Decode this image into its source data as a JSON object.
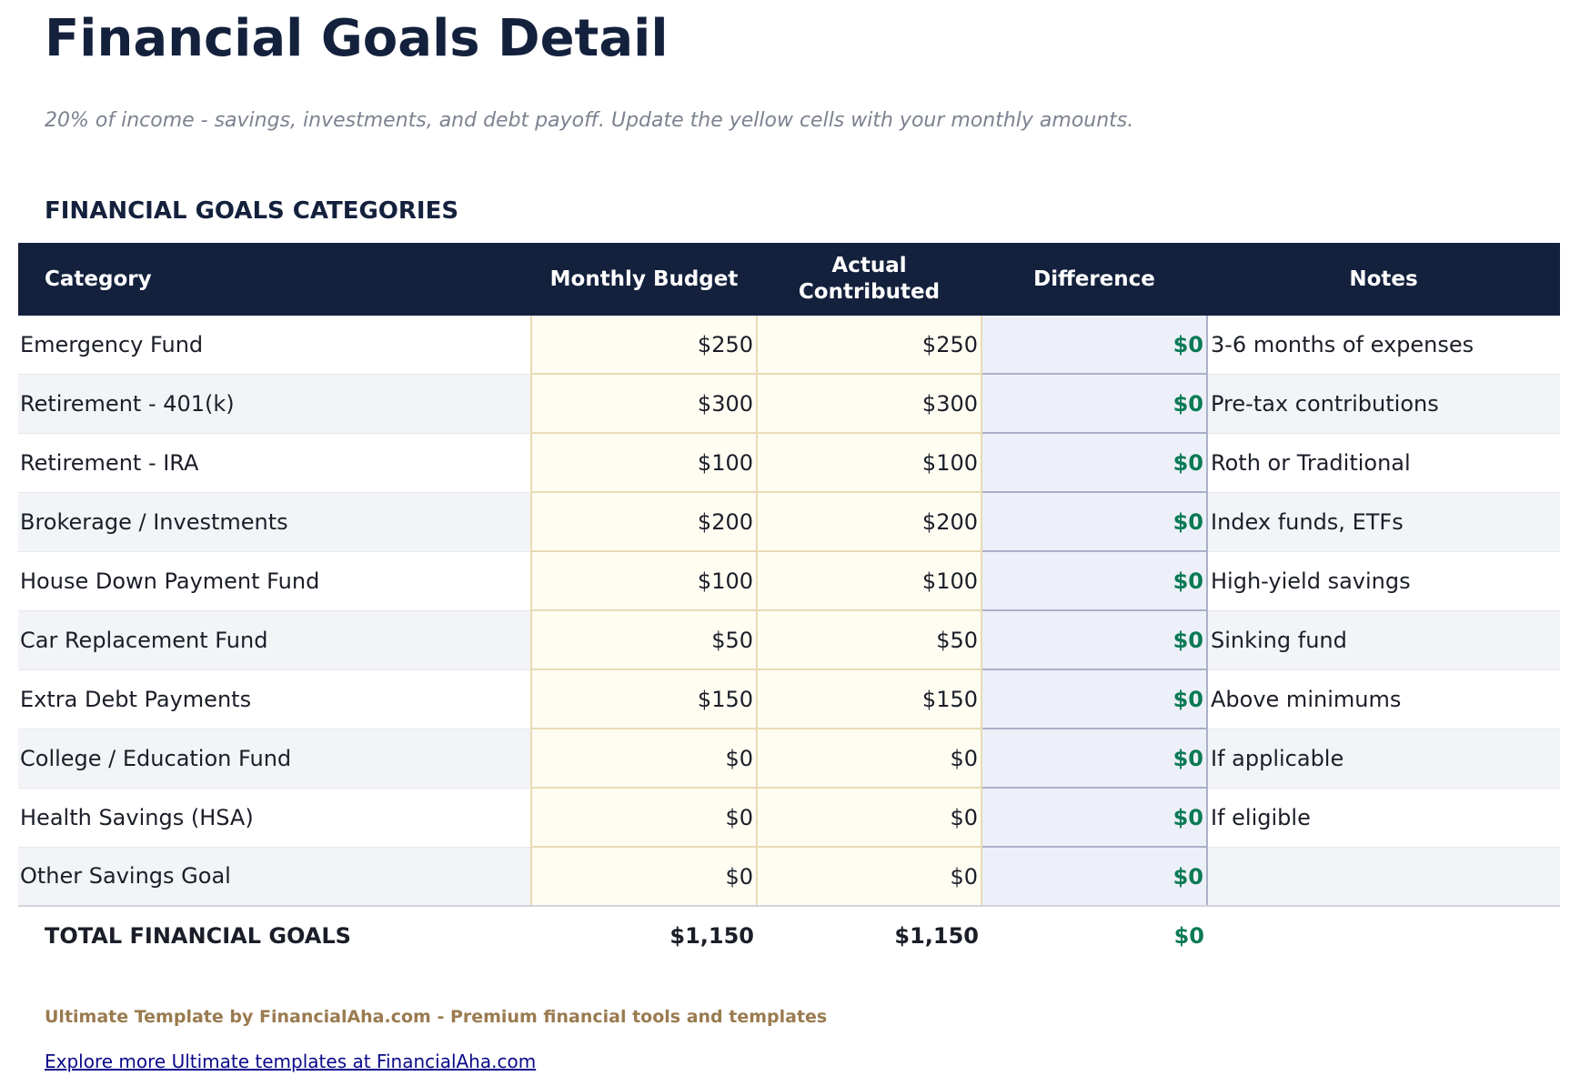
{
  "title": "Financial Goals Detail",
  "subtitle": "20% of income - savings, investments, and debt payoff. Update the yellow cells with your monthly amounts.",
  "section_heading": "FINANCIAL GOALS CATEGORIES",
  "colors": {
    "header_bg": "#14213d",
    "input_cell": "#fffcf2",
    "difference_cell": "#edf0f8",
    "positive": "#0b7a55",
    "footer_text": "#9a7b4f"
  },
  "table": {
    "headers": [
      "Category",
      "Monthly Budget",
      "Actual Contributed",
      "Difference",
      "Notes"
    ],
    "rows": [
      {
        "category": "Emergency Fund",
        "budget": "$250",
        "actual": "$250",
        "difference": "$0",
        "notes": "3-6 months of expenses"
      },
      {
        "category": "Retirement - 401(k)",
        "budget": "$300",
        "actual": "$300",
        "difference": "$0",
        "notes": "Pre-tax contributions"
      },
      {
        "category": "Retirement - IRA",
        "budget": "$100",
        "actual": "$100",
        "difference": "$0",
        "notes": "Roth or Traditional"
      },
      {
        "category": "Brokerage / Investments",
        "budget": "$200",
        "actual": "$200",
        "difference": "$0",
        "notes": "Index funds, ETFs"
      },
      {
        "category": "House Down Payment Fund",
        "budget": "$100",
        "actual": "$100",
        "difference": "$0",
        "notes": "High-yield savings"
      },
      {
        "category": "Car Replacement Fund",
        "budget": "$50",
        "actual": "$50",
        "difference": "$0",
        "notes": "Sinking fund"
      },
      {
        "category": "Extra Debt Payments",
        "budget": "$150",
        "actual": "$150",
        "difference": "$0",
        "notes": "Above minimums"
      },
      {
        "category": "College / Education Fund",
        "budget": "$0",
        "actual": "$0",
        "difference": "$0",
        "notes": "If applicable"
      },
      {
        "category": "Health Savings (HSA)",
        "budget": "$0",
        "actual": "$0",
        "difference": "$0",
        "notes": "If eligible"
      },
      {
        "category": "Other Savings Goal",
        "budget": "$0",
        "actual": "$0",
        "difference": "$0",
        "notes": ""
      }
    ],
    "total": {
      "label": "TOTAL FINANCIAL GOALS",
      "budget": "$1,150",
      "actual": "$1,150",
      "difference": "$0"
    }
  },
  "footer": {
    "credit": "Ultimate Template by FinancialAha.com - Premium financial tools and templates",
    "link_text": "Explore more Ultimate templates at FinancialAha.com"
  }
}
